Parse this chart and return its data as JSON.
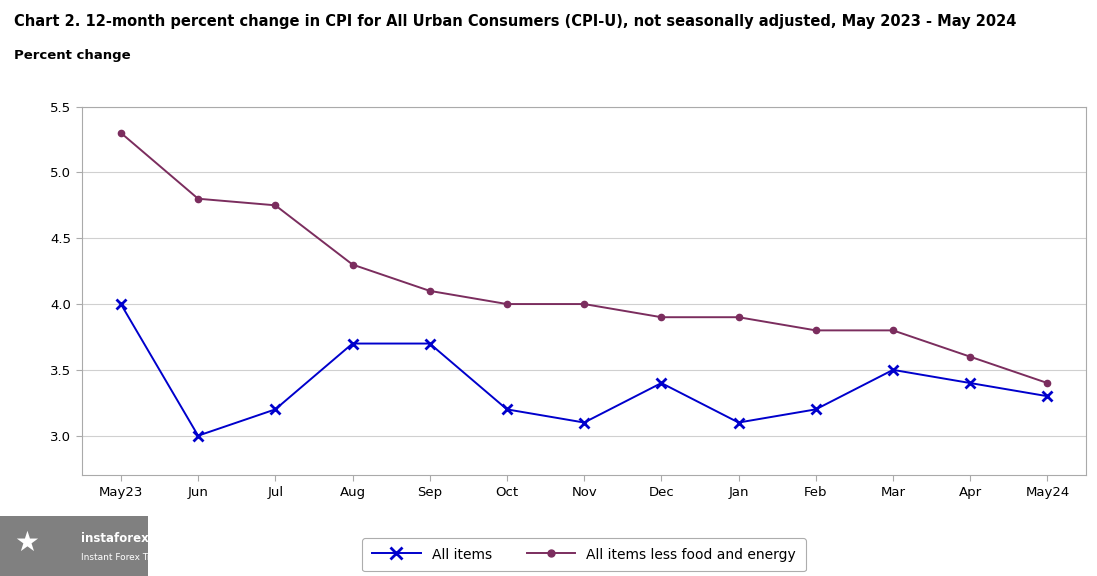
{
  "title": "Chart 2. 12-month percent change in CPI for All Urban Consumers (CPI-U), not seasonally adjusted, May 2023 - May 2024",
  "ylabel": "Percent change",
  "categories": [
    "May23",
    "Jun",
    "Jul",
    "Aug",
    "Sep",
    "Oct",
    "Nov",
    "Dec",
    "Jan",
    "Feb",
    "Mar",
    "Apr",
    "May24"
  ],
  "all_items": [
    4.0,
    3.0,
    3.2,
    3.7,
    3.7,
    3.2,
    3.1,
    3.4,
    3.1,
    3.2,
    3.5,
    3.4,
    3.3
  ],
  "all_items_less": [
    5.3,
    4.8,
    4.75,
    4.3,
    4.1,
    4.0,
    4.0,
    3.9,
    3.9,
    3.8,
    3.8,
    3.6,
    3.4
  ],
  "all_items_color": "#0000cc",
  "all_items_less_color": "#7b2d5e",
  "ylim_min": 2.7,
  "ylim_max": 5.5,
  "yticks": [
    3.0,
    3.5,
    4.0,
    4.5,
    5.0,
    5.5
  ],
  "ytick_labels": [
    "3.0",
    "3.5",
    "4.0",
    "4.5",
    "5.0",
    "5.5"
  ],
  "legend_all_items": "All items",
  "legend_all_items_less": "All items less food and energy",
  "background_color": "#ffffff",
  "plot_bg_color": "#ffffff",
  "grid_color": "#d0d0d0",
  "border_color": "#aaaaaa",
  "title_fontsize": 10.5,
  "label_fontsize": 9.5,
  "tick_fontsize": 9.5,
  "legend_fontsize": 10
}
